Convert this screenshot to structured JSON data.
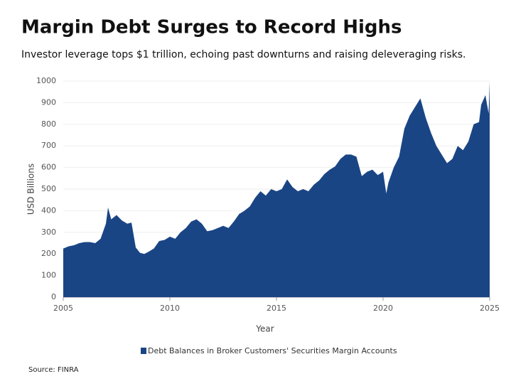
{
  "chart_data": {
    "type": "area",
    "title": "Margin Debt Surges to Record Highs",
    "subtitle": "Investor leverage tops $1 trillion, echoing past downturns and raising deleveraging risks.",
    "x_label": "Year",
    "y_label": "USD Billions",
    "source": "Source: FINRA",
    "x": [
      2005,
      2005.25,
      2005.5,
      2005.75,
      2006,
      2006.25,
      2006.5,
      2006.75,
      2007,
      2007.1,
      2007.25,
      2007.5,
      2007.75,
      2008,
      2008.2,
      2008.4,
      2008.6,
      2008.8,
      2009,
      2009.25,
      2009.5,
      2009.75,
      2010,
      2010.25,
      2010.5,
      2010.75,
      2011,
      2011.25,
      2011.5,
      2011.75,
      2012,
      2012.25,
      2012.5,
      2012.75,
      2013,
      2013.25,
      2013.5,
      2013.75,
      2014,
      2014.25,
      2014.5,
      2014.75,
      2015,
      2015.25,
      2015.5,
      2015.75,
      2016,
      2016.25,
      2016.5,
      2016.75,
      2017,
      2017.25,
      2017.5,
      2017.75,
      2018,
      2018.25,
      2018.5,
      2018.75,
      2019,
      2019.25,
      2019.5,
      2019.75,
      2020,
      2020.15,
      2020.25,
      2020.5,
      2020.75,
      2021,
      2021.25,
      2021.5,
      2021.75,
      2022,
      2022.25,
      2022.5,
      2022.75,
      2023,
      2023.25,
      2023.5,
      2023.75,
      2024,
      2024.25,
      2024.5,
      2024.6,
      2024.8,
      2024.95,
      2025
    ],
    "series": [
      {
        "name": "Debt Balances in Broker Customers' Securities Margin Accounts",
        "color": "#1a4585",
        "values": [
          225,
          235,
          240,
          250,
          255,
          255,
          250,
          270,
          340,
          415,
          360,
          380,
          355,
          340,
          345,
          230,
          205,
          200,
          210,
          225,
          260,
          265,
          280,
          270,
          300,
          320,
          350,
          360,
          340,
          305,
          310,
          320,
          330,
          320,
          350,
          385,
          400,
          420,
          460,
          490,
          470,
          500,
          490,
          500,
          545,
          510,
          490,
          500,
          490,
          520,
          540,
          570,
          590,
          605,
          640,
          660,
          660,
          650,
          560,
          580,
          590,
          565,
          580,
          480,
          530,
          600,
          650,
          780,
          840,
          880,
          920,
          830,
          760,
          700,
          660,
          620,
          640,
          700,
          680,
          720,
          800,
          810,
          890,
          935,
          850,
          1000
        ]
      }
    ],
    "xlim": [
      2005,
      2025
    ],
    "xticks": [
      2005,
      2010,
      2015,
      2020,
      2025
    ],
    "ylim": [
      0,
      1000
    ],
    "yticks": [
      0,
      100,
      200,
      300,
      400,
      500,
      600,
      700,
      800,
      900,
      1000
    ],
    "grid": true,
    "legend": "bottom"
  }
}
